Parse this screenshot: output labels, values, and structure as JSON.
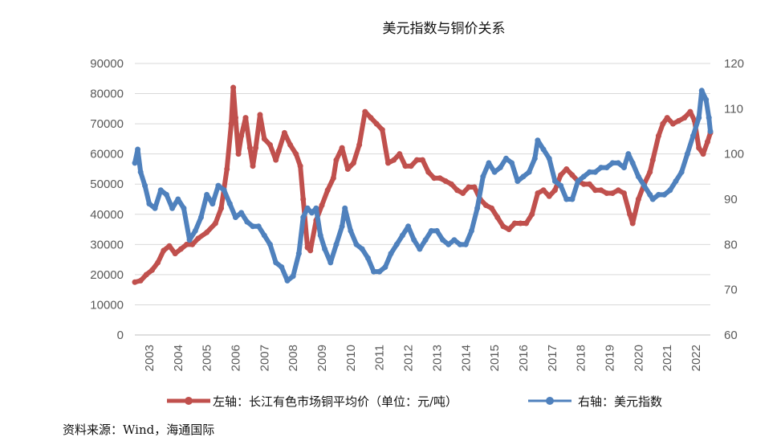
{
  "chart_data": {
    "type": "line",
    "title": "美元指数与铜价关系",
    "x_categories": [
      "2003",
      "2004",
      "2005",
      "2006",
      "2007",
      "2008",
      "2009",
      "2010",
      "2011",
      "2012",
      "2013",
      "2014",
      "2015",
      "2016",
      "2017",
      "2018",
      "2019",
      "2020",
      "2021",
      "2022"
    ],
    "left_axis": {
      "min": 0,
      "max": 90000,
      "step": 10000,
      "ticks": [
        "0",
        "10000",
        "20000",
        "30000",
        "40000",
        "50000",
        "60000",
        "70000",
        "80000",
        "90000"
      ]
    },
    "right_axis": {
      "min": 60,
      "max": 120,
      "step": 10,
      "ticks": [
        "60",
        "70",
        "80",
        "90",
        "100",
        "110",
        "120"
      ]
    },
    "grid": true,
    "legend_position": "bottom",
    "series": [
      {
        "name": "左轴：长江有色市场铜平均价（单位：元/吨）",
        "axis": "left",
        "color": "#c0504d",
        "points": [
          [
            2003.0,
            17500
          ],
          [
            2003.2,
            18000
          ],
          [
            2003.4,
            20000
          ],
          [
            2003.6,
            21500
          ],
          [
            2003.8,
            24000
          ],
          [
            2004.0,
            28000
          ],
          [
            2004.2,
            29500
          ],
          [
            2004.4,
            27000
          ],
          [
            2004.6,
            28500
          ],
          [
            2004.8,
            30000
          ],
          [
            2005.0,
            30000
          ],
          [
            2005.2,
            32000
          ],
          [
            2005.5,
            34000
          ],
          [
            2005.8,
            37000
          ],
          [
            2006.0,
            42000
          ],
          [
            2006.2,
            55000
          ],
          [
            2006.35,
            70000
          ],
          [
            2006.42,
            82000
          ],
          [
            2006.5,
            72000
          ],
          [
            2006.6,
            60000
          ],
          [
            2006.7,
            66000
          ],
          [
            2006.85,
            72000
          ],
          [
            2007.0,
            62000
          ],
          [
            2007.1,
            56000
          ],
          [
            2007.2,
            62000
          ],
          [
            2007.35,
            73000
          ],
          [
            2007.5,
            65000
          ],
          [
            2007.7,
            63000
          ],
          [
            2007.9,
            58000
          ],
          [
            2008.0,
            61000
          ],
          [
            2008.2,
            67000
          ],
          [
            2008.4,
            63000
          ],
          [
            2008.6,
            60000
          ],
          [
            2008.75,
            56000
          ],
          [
            2008.85,
            45000
          ],
          [
            2009.0,
            29000
          ],
          [
            2009.1,
            28000
          ],
          [
            2009.3,
            38000
          ],
          [
            2009.5,
            43000
          ],
          [
            2009.7,
            48000
          ],
          [
            2009.9,
            52000
          ],
          [
            2010.0,
            58000
          ],
          [
            2010.2,
            62000
          ],
          [
            2010.4,
            55000
          ],
          [
            2010.6,
            57000
          ],
          [
            2010.8,
            63000
          ],
          [
            2011.0,
            74000
          ],
          [
            2011.2,
            72000
          ],
          [
            2011.4,
            70000
          ],
          [
            2011.6,
            68000
          ],
          [
            2011.8,
            57000
          ],
          [
            2012.0,
            58000
          ],
          [
            2012.2,
            60000
          ],
          [
            2012.4,
            56000
          ],
          [
            2012.6,
            56000
          ],
          [
            2012.8,
            58000
          ],
          [
            2013.0,
            58000
          ],
          [
            2013.2,
            54000
          ],
          [
            2013.4,
            52000
          ],
          [
            2013.6,
            52000
          ],
          [
            2013.8,
            51000
          ],
          [
            2014.0,
            50000
          ],
          [
            2014.2,
            48000
          ],
          [
            2014.4,
            47000
          ],
          [
            2014.6,
            49000
          ],
          [
            2014.8,
            49000
          ],
          [
            2015.0,
            45000
          ],
          [
            2015.2,
            43000
          ],
          [
            2015.4,
            42000
          ],
          [
            2015.6,
            39000
          ],
          [
            2015.8,
            36000
          ],
          [
            2016.0,
            35000
          ],
          [
            2016.2,
            37000
          ],
          [
            2016.4,
            37000
          ],
          [
            2016.6,
            37000
          ],
          [
            2016.8,
            40000
          ],
          [
            2017.0,
            47000
          ],
          [
            2017.2,
            48000
          ],
          [
            2017.4,
            46000
          ],
          [
            2017.6,
            48000
          ],
          [
            2017.8,
            53000
          ],
          [
            2018.0,
            55000
          ],
          [
            2018.2,
            53000
          ],
          [
            2018.4,
            51000
          ],
          [
            2018.6,
            50000
          ],
          [
            2018.8,
            50000
          ],
          [
            2019.0,
            48000
          ],
          [
            2019.2,
            48000
          ],
          [
            2019.4,
            47000
          ],
          [
            2019.6,
            47000
          ],
          [
            2019.8,
            48000
          ],
          [
            2020.0,
            47000
          ],
          [
            2020.2,
            40000
          ],
          [
            2020.3,
            37000
          ],
          [
            2020.5,
            45000
          ],
          [
            2020.7,
            50000
          ],
          [
            2020.9,
            54000
          ],
          [
            2021.0,
            58000
          ],
          [
            2021.2,
            66000
          ],
          [
            2021.35,
            70000
          ],
          [
            2021.5,
            72000
          ],
          [
            2021.7,
            70000
          ],
          [
            2021.9,
            71000
          ],
          [
            2022.1,
            72000
          ],
          [
            2022.3,
            74000
          ],
          [
            2022.45,
            71000
          ],
          [
            2022.6,
            62000
          ],
          [
            2022.75,
            60000
          ],
          [
            2022.9,
            64000
          ],
          [
            2023.0,
            67000
          ]
        ]
      },
      {
        "name": "右轴：美元指数",
        "axis": "right",
        "color": "#4f81bd",
        "points": [
          [
            2003.0,
            98
          ],
          [
            2003.1,
            101
          ],
          [
            2003.2,
            96
          ],
          [
            2003.35,
            93
          ],
          [
            2003.5,
            89
          ],
          [
            2003.7,
            88
          ],
          [
            2003.9,
            92
          ],
          [
            2004.1,
            91
          ],
          [
            2004.3,
            88
          ],
          [
            2004.5,
            90
          ],
          [
            2004.7,
            88
          ],
          [
            2004.9,
            81
          ],
          [
            2005.1,
            83
          ],
          [
            2005.3,
            86
          ],
          [
            2005.5,
            91
          ],
          [
            2005.7,
            89
          ],
          [
            2005.9,
            93
          ],
          [
            2006.1,
            92
          ],
          [
            2006.3,
            89
          ],
          [
            2006.5,
            86
          ],
          [
            2006.7,
            87
          ],
          [
            2006.9,
            85
          ],
          [
            2007.1,
            84
          ],
          [
            2007.3,
            84
          ],
          [
            2007.5,
            82
          ],
          [
            2007.7,
            80
          ],
          [
            2007.9,
            76
          ],
          [
            2008.1,
            75
          ],
          [
            2008.3,
            72
          ],
          [
            2008.5,
            73
          ],
          [
            2008.7,
            78
          ],
          [
            2008.85,
            86
          ],
          [
            2009.0,
            88
          ],
          [
            2009.15,
            87
          ],
          [
            2009.3,
            88
          ],
          [
            2009.45,
            82
          ],
          [
            2009.6,
            79
          ],
          [
            2009.8,
            76
          ],
          [
            2010.0,
            80
          ],
          [
            2010.2,
            84
          ],
          [
            2010.3,
            88
          ],
          [
            2010.5,
            83
          ],
          [
            2010.7,
            80
          ],
          [
            2010.9,
            79
          ],
          [
            2011.1,
            77
          ],
          [
            2011.3,
            74
          ],
          [
            2011.5,
            74
          ],
          [
            2011.7,
            75
          ],
          [
            2011.9,
            78
          ],
          [
            2012.1,
            80
          ],
          [
            2012.3,
            82
          ],
          [
            2012.5,
            84
          ],
          [
            2012.7,
            81
          ],
          [
            2012.9,
            79
          ],
          [
            2013.1,
            81
          ],
          [
            2013.3,
            83
          ],
          [
            2013.5,
            83
          ],
          [
            2013.7,
            81
          ],
          [
            2013.9,
            80
          ],
          [
            2014.1,
            81
          ],
          [
            2014.3,
            80
          ],
          [
            2014.5,
            80
          ],
          [
            2014.7,
            83
          ],
          [
            2014.9,
            88
          ],
          [
            2015.1,
            95
          ],
          [
            2015.3,
            98
          ],
          [
            2015.5,
            96
          ],
          [
            2015.7,
            97
          ],
          [
            2015.9,
            99
          ],
          [
            2016.1,
            98
          ],
          [
            2016.3,
            94
          ],
          [
            2016.5,
            95
          ],
          [
            2016.7,
            96
          ],
          [
            2016.9,
            99
          ],
          [
            2017.0,
            103
          ],
          [
            2017.2,
            101
          ],
          [
            2017.4,
            99
          ],
          [
            2017.6,
            94
          ],
          [
            2017.8,
            93
          ],
          [
            2018.0,
            90
          ],
          [
            2018.2,
            90
          ],
          [
            2018.4,
            94
          ],
          [
            2018.6,
            95
          ],
          [
            2018.8,
            96
          ],
          [
            2019.0,
            96
          ],
          [
            2019.2,
            97
          ],
          [
            2019.4,
            97
          ],
          [
            2019.6,
            98
          ],
          [
            2019.8,
            98
          ],
          [
            2020.0,
            97
          ],
          [
            2020.15,
            100
          ],
          [
            2020.3,
            98
          ],
          [
            2020.5,
            95
          ],
          [
            2020.7,
            93
          ],
          [
            2020.9,
            91
          ],
          [
            2021.0,
            90
          ],
          [
            2021.2,
            91
          ],
          [
            2021.4,
            91
          ],
          [
            2021.6,
            92
          ],
          [
            2021.8,
            94
          ],
          [
            2022.0,
            96
          ],
          [
            2022.2,
            100
          ],
          [
            2022.4,
            104
          ],
          [
            2022.6,
            108
          ],
          [
            2022.7,
            114
          ],
          [
            2022.85,
            112
          ],
          [
            2022.95,
            108
          ],
          [
            2023.0,
            105
          ]
        ]
      }
    ]
  },
  "legend": {
    "left_label": "左轴：长江有色市场铜平均价（单位：元/吨）",
    "right_label": "右轴：美元指数"
  },
  "source": "资料来源：Wind，海通国际"
}
